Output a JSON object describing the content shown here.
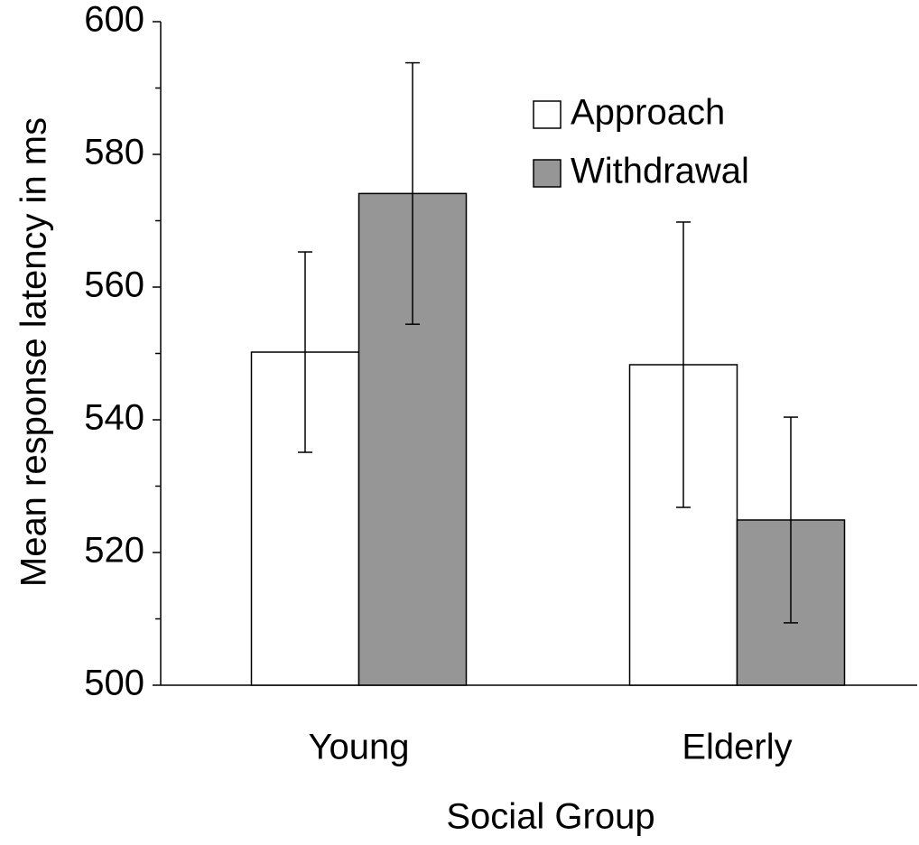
{
  "chart_data": {
    "type": "bar",
    "y_label": "Mean response latency in ms",
    "x_label": "Social Group",
    "categories": [
      "Young",
      "Elderly"
    ],
    "series": [
      {
        "name": "Approach",
        "color": "#ffffff",
        "values": [
          550.2,
          548.3
        ],
        "errors": [
          15.1,
          21.5
        ]
      },
      {
        "name": "Withdrawal",
        "color": "#969696",
        "values": [
          574.1,
          524.9
        ],
        "errors": [
          19.7,
          15.5
        ]
      }
    ],
    "ylim": [
      500,
      600
    ],
    "yticks": [
      500,
      520,
      540,
      560,
      580,
      600
    ],
    "yminorticks": [
      510,
      530,
      550,
      570,
      590
    ],
    "grid": false,
    "legend": "upper right"
  }
}
